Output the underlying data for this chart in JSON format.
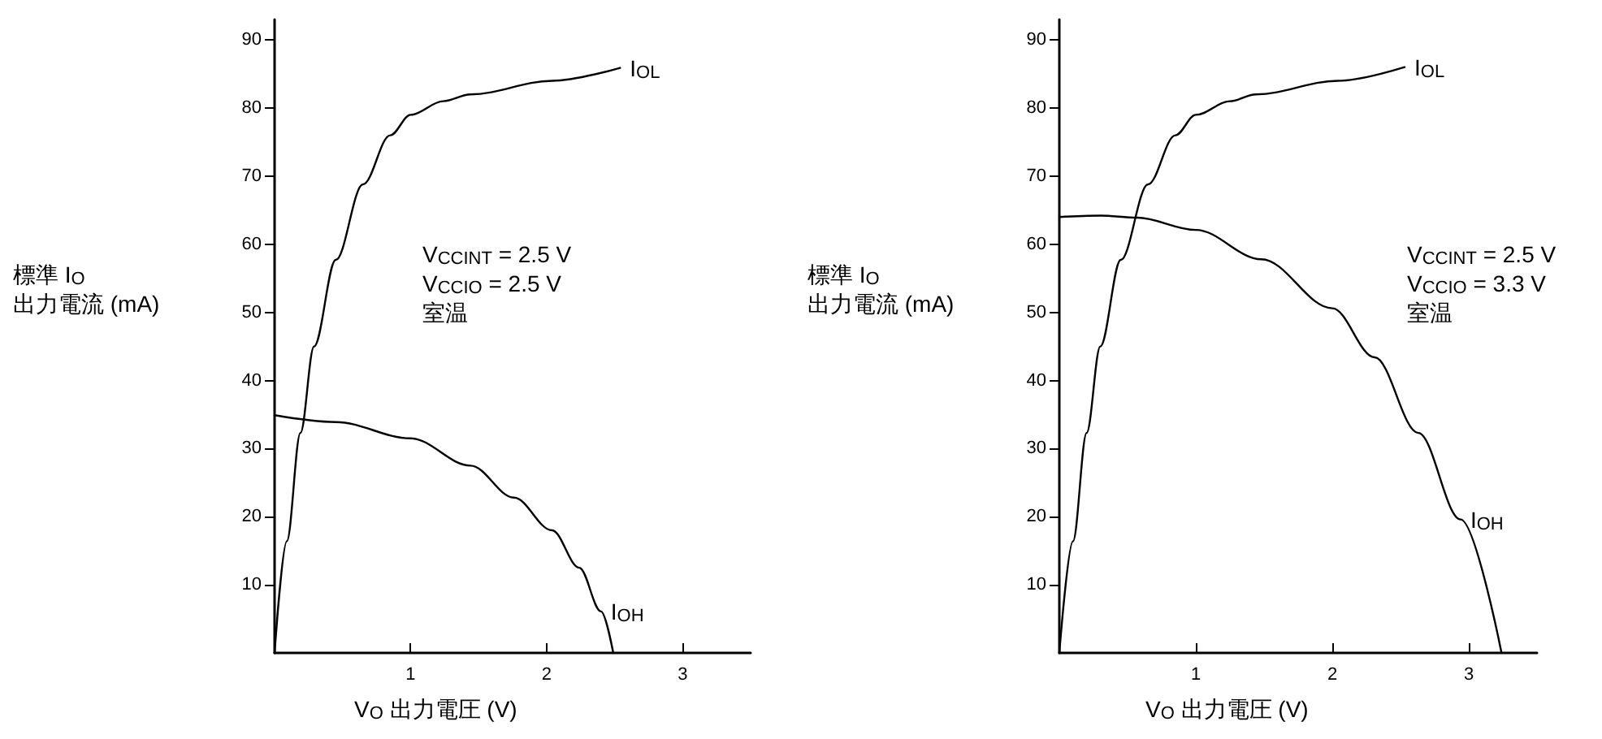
{
  "chart_data": [
    {
      "type": "line",
      "xlabel": "V$_{O}$ 出力電圧 (V)",
      "ylabel": "標準 I$_{O}$\n出力電流 (mA)",
      "annotations": [
        "V$_{CCINT}$ = 2.5 V\nV$_{CCIO}$ = 2.5 V\n室温"
      ],
      "xlim": [
        0,
        3.5
      ],
      "ylim": [
        0,
        93
      ],
      "xticks": [
        1,
        2,
        3
      ],
      "yticks": [
        10,
        20,
        30,
        40,
        50,
        60,
        70,
        80,
        90
      ],
      "series": [
        {
          "name": "I$_{OL}$",
          "color": "#000000",
          "x": [
            0,
            0.09,
            0.19,
            0.29,
            0.45,
            0.65,
            0.85,
            1.0,
            1.24,
            1.44,
            2.04,
            2.54
          ],
          "values": [
            0,
            16.4,
            32.3,
            45,
            57.7,
            68.8,
            76,
            79,
            81,
            82,
            84,
            85.9
          ]
        },
        {
          "name": "I$_{OH}$",
          "color": "#000000",
          "x": [
            0,
            0.45,
            1.0,
            1.44,
            1.76,
            2.04,
            2.24,
            2.4,
            2.49
          ],
          "values": [
            34.9,
            33.9,
            31.5,
            27.5,
            22.8,
            18,
            12.5,
            6.1,
            0
          ]
        }
      ]
    },
    {
      "type": "line",
      "xlabel": "V$_{O}$ 出力電圧 (V)",
      "ylabel": "標準 I$_{O}$\n出力電流 (mA)",
      "annotations": [
        "V$_{CCINT}$ = 2.5 V\nV$_{CCIO}$ = 3.3 V\n室温"
      ],
      "xlim": [
        0,
        3.5
      ],
      "ylim": [
        0,
        93
      ],
      "xticks": [
        1,
        2,
        3
      ],
      "yticks": [
        10,
        20,
        30,
        40,
        50,
        60,
        70,
        80,
        90
      ],
      "series": [
        {
          "name": "I$_{OL}$",
          "color": "#000000",
          "x": [
            0,
            0.1,
            0.2,
            0.3,
            0.45,
            0.65,
            0.85,
            1.0,
            1.25,
            1.44,
            2.04,
            2.53
          ],
          "values": [
            0,
            16.4,
            32.3,
            45,
            57.7,
            68.8,
            76,
            79,
            81,
            82,
            84,
            86
          ]
        },
        {
          "name": "I$_{OH}$",
          "color": "#000000",
          "x": [
            0,
            0.3,
            0.57,
            1.0,
            1.48,
            2.0,
            2.31,
            2.63,
            2.94,
            3.24
          ],
          "values": [
            64,
            64.2,
            63.9,
            62.1,
            57.8,
            50.6,
            43.4,
            32.3,
            19.6,
            0
          ]
        }
      ]
    }
  ]
}
